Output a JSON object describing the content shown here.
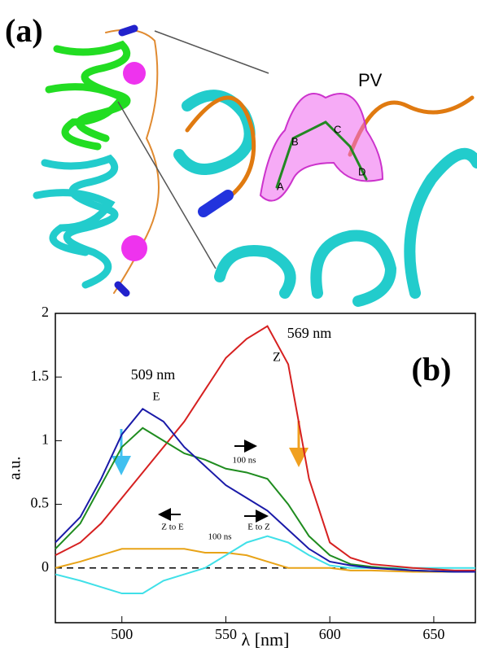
{
  "panel_a": {
    "label": "(a)",
    "pv": "PV",
    "rings": [
      "A",
      "B",
      "C",
      "D"
    ]
  },
  "chart_data": {
    "type": "line",
    "panel_label": "(b)",
    "xlabel": "λ [nm]",
    "ylabel": "a.u.",
    "x": [
      468,
      480,
      490,
      500,
      510,
      520,
      530,
      540,
      550,
      560,
      570,
      580,
      590,
      600,
      610,
      620,
      640,
      660,
      670
    ],
    "series": [
      {
        "color": "#e8a317",
        "values": [
          0.0,
          0.05,
          0.1,
          0.15,
          0.15,
          0.15,
          0.15,
          0.12,
          0.12,
          0.1,
          0.05,
          0.0,
          0.0,
          0.0,
          -0.02,
          -0.02,
          -0.03,
          -0.03,
          -0.03
        ]
      },
      {
        "color": "#40e0e8",
        "values": [
          -0.05,
          -0.1,
          -0.15,
          -0.2,
          -0.2,
          -0.1,
          -0.05,
          0.0,
          0.1,
          0.2,
          0.25,
          0.2,
          0.1,
          0.02,
          0.0,
          0.0,
          0.0,
          0.0,
          0.0
        ]
      },
      {
        "color": "#d62020",
        "values": [
          0.1,
          0.2,
          0.35,
          0.55,
          0.75,
          0.95,
          1.15,
          1.4,
          1.65,
          1.8,
          1.9,
          1.6,
          0.7,
          0.2,
          0.08,
          0.03,
          0.0,
          -0.02,
          -0.02
        ]
      },
      {
        "color": "#1f8c1f",
        "values": [
          0.15,
          0.35,
          0.65,
          0.95,
          1.1,
          1.0,
          0.9,
          0.85,
          0.78,
          0.75,
          0.7,
          0.5,
          0.25,
          0.1,
          0.03,
          0.01,
          -0.02,
          -0.03,
          -0.03
        ]
      },
      {
        "color": "#1a1aa8",
        "values": [
          0.2,
          0.4,
          0.7,
          1.05,
          1.25,
          1.15,
          0.95,
          0.8,
          0.65,
          0.55,
          0.45,
          0.3,
          0.15,
          0.05,
          0.02,
          0.0,
          -0.02,
          -0.03,
          -0.03
        ]
      }
    ],
    "hline": 0,
    "xlim": [
      468,
      670
    ],
    "ylim": [
      -0.43,
      2.0
    ],
    "xticks": [
      500,
      550,
      600,
      650
    ],
    "yticks": [
      0,
      0.5,
      1,
      1.5,
      2
    ],
    "annotations": [
      "569 nm",
      "Z",
      "509 nm",
      "E",
      "100 ns",
      "Z to E",
      "100 ns",
      "E to Z"
    ]
  }
}
